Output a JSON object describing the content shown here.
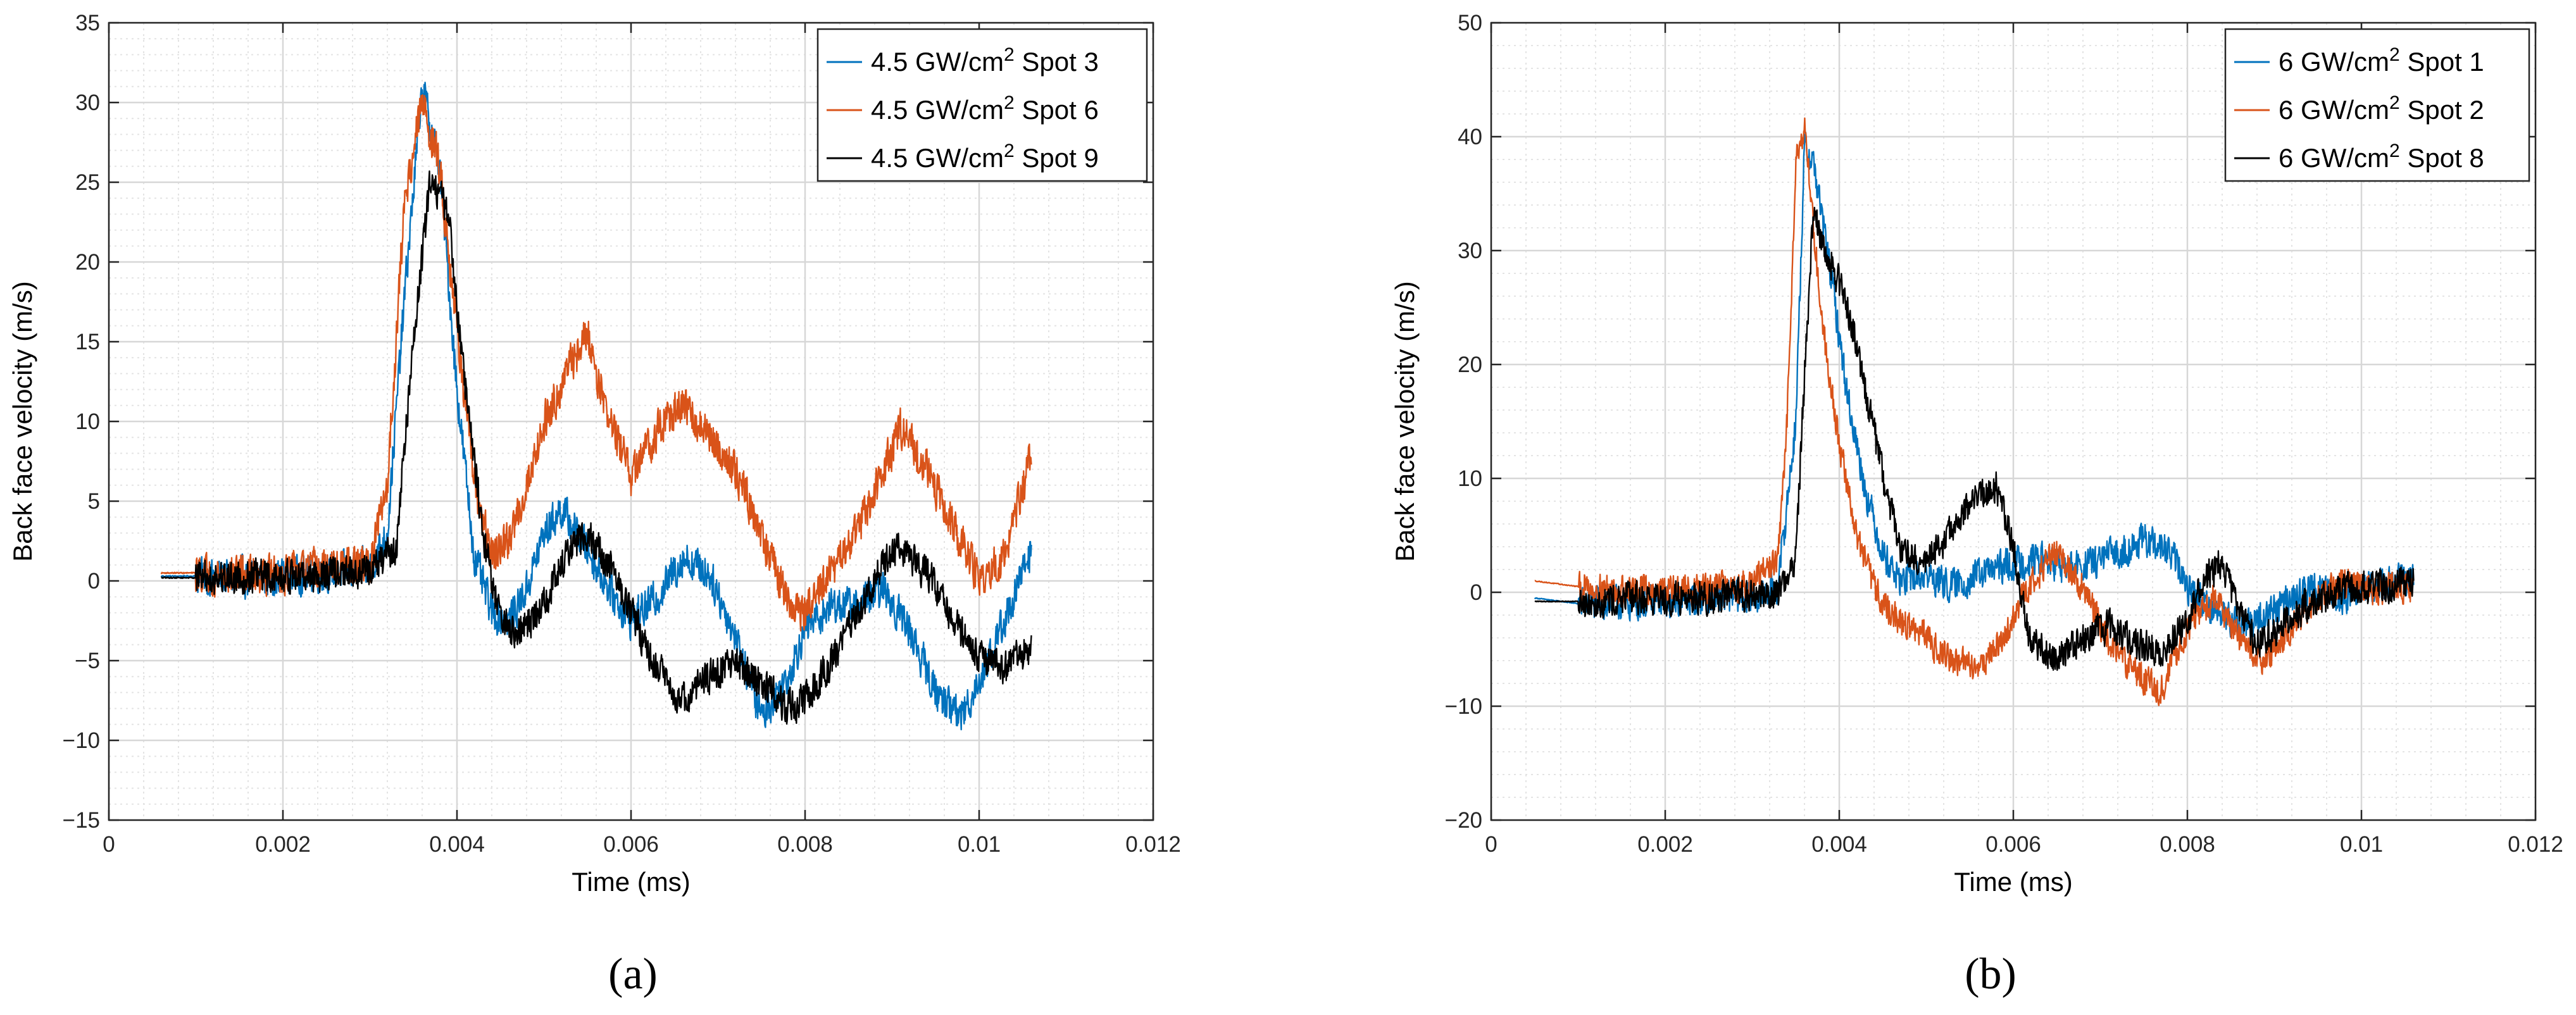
{
  "colors": {
    "blue": "#0072BD",
    "orange": "#D95319",
    "black": "#000000",
    "grid_major": "#d7d7d7",
    "grid_minor": "#e4e4e4"
  },
  "chart_data": [
    {
      "type": "line",
      "panel_label": "(a)",
      "xlabel": "Time (ms)",
      "ylabel": "Back face velocity (m/s)",
      "xlim": [
        0,
        0.012
      ],
      "ylim": [
        -15,
        35
      ],
      "xticks": [
        0,
        0.002,
        0.004,
        0.006,
        0.008,
        0.01,
        0.012
      ],
      "xtick_labels": [
        "0",
        "0.002",
        "0.004",
        "0.006",
        "0.008",
        "0.01",
        "0.012"
      ],
      "yticks": [
        -15,
        -10,
        -5,
        0,
        5,
        10,
        15,
        20,
        25,
        30,
        35
      ],
      "ytick_labels": [
        "−15",
        "−10",
        "−5",
        "0",
        "5",
        "10",
        "15",
        "20",
        "25",
        "30",
        "35"
      ],
      "grid": true,
      "minor_grid": true,
      "legend_position": "top-right",
      "series": [
        {
          "name": "4.5 GW/cm2 Spot 3",
          "legend_prefix": "4.5 GW/cm",
          "legend_sup": "2",
          "legend_suffix": " Spot 3",
          "color": "#0072BD",
          "noise": 1.6,
          "x": [
            0.0006,
            0.001,
            0.0015,
            0.002,
            0.0025,
            0.003,
            0.0032,
            0.0034,
            0.0036,
            0.0038,
            0.004,
            0.0042,
            0.0044,
            0.0046,
            0.0048,
            0.005,
            0.0052,
            0.0055,
            0.0058,
            0.006,
            0.0063,
            0.0066,
            0.0069,
            0.0072,
            0.0075,
            0.0078,
            0.008,
            0.0083,
            0.0086,
            0.0089,
            0.0092,
            0.0095,
            0.0098,
            0.0101,
            0.0104,
            0.0106
          ],
          "y": [
            0.3,
            0.3,
            0.2,
            0.3,
            0.5,
            0.8,
            3.0,
            18.0,
            31.0,
            26.0,
            12.0,
            1.5,
            -2.0,
            -2.5,
            -0.5,
            3.0,
            4.5,
            2.0,
            -1.0,
            -2.5,
            -1.0,
            1.5,
            0.5,
            -3.5,
            -8.5,
            -6.0,
            -3.0,
            -1.5,
            -1.5,
            -0.5,
            -3.0,
            -7.0,
            -8.5,
            -5.0,
            -1.0,
            2.0
          ]
        },
        {
          "name": "4.5 GW/cm2 Spot 6",
          "legend_prefix": "4.5 GW/cm",
          "legend_sup": "2",
          "legend_suffix": " Spot 6",
          "color": "#D95319",
          "noise": 1.7,
          "x": [
            0.0006,
            0.001,
            0.0015,
            0.002,
            0.0025,
            0.003,
            0.0032,
            0.0034,
            0.0036,
            0.0038,
            0.004,
            0.0042,
            0.0044,
            0.0046,
            0.0048,
            0.005,
            0.0053,
            0.0055,
            0.0057,
            0.006,
            0.0063,
            0.0066,
            0.0069,
            0.0072,
            0.0075,
            0.0078,
            0.008,
            0.0083,
            0.0086,
            0.0089,
            0.0091,
            0.0094,
            0.0097,
            0.01,
            0.0103,
            0.0106
          ],
          "y": [
            0.5,
            0.5,
            0.4,
            0.5,
            0.7,
            1.0,
            6.0,
            24.0,
            30.0,
            26.0,
            16.0,
            6.0,
            1.5,
            2.5,
            6.0,
            10.0,
            13.5,
            15.5,
            11.0,
            6.5,
            9.5,
            11.0,
            9.0,
            7.0,
            3.0,
            -1.5,
            -2.0,
            0.5,
            3.0,
            7.0,
            9.5,
            7.0,
            3.5,
            0.0,
            1.5,
            8.0
          ]
        },
        {
          "name": "4.5 GW/cm2 Spot 9",
          "legend_prefix": "4.5 GW/cm",
          "legend_sup": "2",
          "legend_suffix": " Spot 9",
          "color": "#000000",
          "noise": 1.5,
          "x": [
            0.0006,
            0.001,
            0.0015,
            0.002,
            0.0025,
            0.003,
            0.0033,
            0.0035,
            0.0037,
            0.0039,
            0.0041,
            0.0043,
            0.0045,
            0.0047,
            0.005,
            0.0053,
            0.0055,
            0.0058,
            0.006,
            0.0063,
            0.0066,
            0.0069,
            0.0072,
            0.0075,
            0.0078,
            0.008,
            0.0083,
            0.0086,
            0.0089,
            0.0091,
            0.0094,
            0.0097,
            0.01,
            0.0103,
            0.0106
          ],
          "y": [
            0.2,
            0.2,
            0.3,
            0.2,
            0.4,
            0.6,
            2.0,
            15.0,
            25.5,
            23.0,
            12.0,
            3.0,
            -2.5,
            -3.5,
            -1.5,
            2.0,
            3.0,
            0.5,
            -2.0,
            -5.5,
            -7.5,
            -6.0,
            -5.0,
            -6.5,
            -8.0,
            -7.5,
            -5.0,
            -2.0,
            1.0,
            2.0,
            0.5,
            -2.5,
            -5.0,
            -5.5,
            -4.0
          ]
        }
      ]
    },
    {
      "type": "line",
      "panel_label": "(b)",
      "xlabel": "Time (ms)",
      "ylabel": "Back face velocity (m/s)",
      "xlim": [
        0,
        0.012
      ],
      "ylim": [
        -20,
        50
      ],
      "xticks": [
        0,
        0.002,
        0.004,
        0.006,
        0.008,
        0.01,
        0.012
      ],
      "xtick_labels": [
        "0",
        "0.002",
        "0.004",
        "0.006",
        "0.008",
        "0.01",
        "0.012"
      ],
      "yticks": [
        -20,
        -10,
        0,
        10,
        20,
        30,
        40,
        50
      ],
      "ytick_labels": [
        "−20",
        "−10",
        "0",
        "10",
        "20",
        "30",
        "40",
        "50"
      ],
      "grid": true,
      "minor_grid": true,
      "legend_position": "top-right",
      "series": [
        {
          "name": "6 GW/cm2 Spot 1",
          "legend_prefix": "6 GW/cm",
          "legend_sup": "2",
          "legend_suffix": " Spot 1",
          "color": "#0072BD",
          "noise": 2.0,
          "x": [
            0.0005,
            0.001,
            0.0015,
            0.002,
            0.0025,
            0.003,
            0.0033,
            0.0035,
            0.0036,
            0.0037,
            0.0039,
            0.0041,
            0.0043,
            0.0045,
            0.0047,
            0.005,
            0.0053,
            0.0056,
            0.006,
            0.0063,
            0.0066,
            0.0069,
            0.0072,
            0.0075,
            0.0078,
            0.008,
            0.0083,
            0.0086,
            0.0089,
            0.0092,
            0.0095,
            0.0098,
            0.0101,
            0.0104,
            0.0106
          ],
          "y": [
            -0.5,
            -1.0,
            -1.0,
            -0.8,
            -0.5,
            -0.5,
            0.5,
            15.0,
            39.0,
            38.0,
            28.0,
            17.0,
            9.0,
            3.5,
            1.0,
            1.5,
            0.5,
            1.5,
            2.5,
            3.0,
            2.0,
            2.5,
            3.5,
            4.5,
            3.5,
            0.5,
            -1.5,
            -3.0,
            -2.0,
            -0.5,
            0.5,
            -0.5,
            0.5,
            1.0,
            1.0
          ]
        },
        {
          "name": "6 GW/cm2 Spot 2",
          "legend_prefix": "6 GW/cm",
          "legend_sup": "2",
          "legend_suffix": " Spot 2",
          "color": "#D95319",
          "noise": 1.8,
          "x": [
            0.0005,
            0.001,
            0.0015,
            0.002,
            0.0025,
            0.003,
            0.0033,
            0.0034,
            0.0035,
            0.0036,
            0.0038,
            0.004,
            0.0042,
            0.0044,
            0.0046,
            0.0048,
            0.005,
            0.0053,
            0.0056,
            0.0059,
            0.0062,
            0.0065,
            0.0068,
            0.0071,
            0.0074,
            0.0077,
            0.008,
            0.0083,
            0.0086,
            0.0089,
            0.0092,
            0.0095,
            0.0098,
            0.0101,
            0.0104,
            0.0106
          ],
          "y": [
            1.0,
            0.5,
            0.3,
            0.2,
            0.3,
            0.8,
            3.0,
            15.0,
            38.0,
            41.0,
            24.0,
            13.0,
            5.0,
            0.5,
            -2.0,
            -3.0,
            -4.0,
            -6.0,
            -6.5,
            -4.0,
            1.0,
            3.5,
            0.5,
            -4.5,
            -7.0,
            -8.5,
            -3.0,
            -0.5,
            -4.0,
            -6.0,
            -3.0,
            -0.5,
            1.0,
            0.0,
            0.5,
            0.0
          ]
        },
        {
          "name": "6 GW/cm2 Spot 8",
          "legend_prefix": "6 GW/cm",
          "legend_sup": "2",
          "legend_suffix": " Spot 8",
          "color": "#000000",
          "noise": 2.0,
          "x": [
            0.0005,
            0.001,
            0.0015,
            0.002,
            0.0025,
            0.003,
            0.0033,
            0.0035,
            0.0036,
            0.0037,
            0.0039,
            0.0041,
            0.0043,
            0.0045,
            0.0047,
            0.005,
            0.0053,
            0.0056,
            0.0058,
            0.006,
            0.0062,
            0.0065,
            0.0068,
            0.0071,
            0.0074,
            0.0077,
            0.008,
            0.0082,
            0.0084,
            0.0086,
            0.0088,
            0.0091,
            0.0094,
            0.0097,
            0.01,
            0.0103,
            0.0106
          ],
          "y": [
            -0.8,
            -0.8,
            -0.6,
            -0.5,
            -0.4,
            -0.3,
            0.0,
            3.0,
            19.0,
            33.0,
            29.0,
            25.0,
            18.0,
            10.0,
            4.0,
            2.5,
            5.5,
            8.5,
            9.5,
            4.0,
            -4.5,
            -6.0,
            -4.0,
            -3.0,
            -4.5,
            -5.0,
            -2.5,
            1.5,
            2.5,
            -2.0,
            -4.5,
            -3.0,
            -1.0,
            0.0,
            0.5,
            0.5,
            1.0
          ]
        }
      ]
    }
  ]
}
